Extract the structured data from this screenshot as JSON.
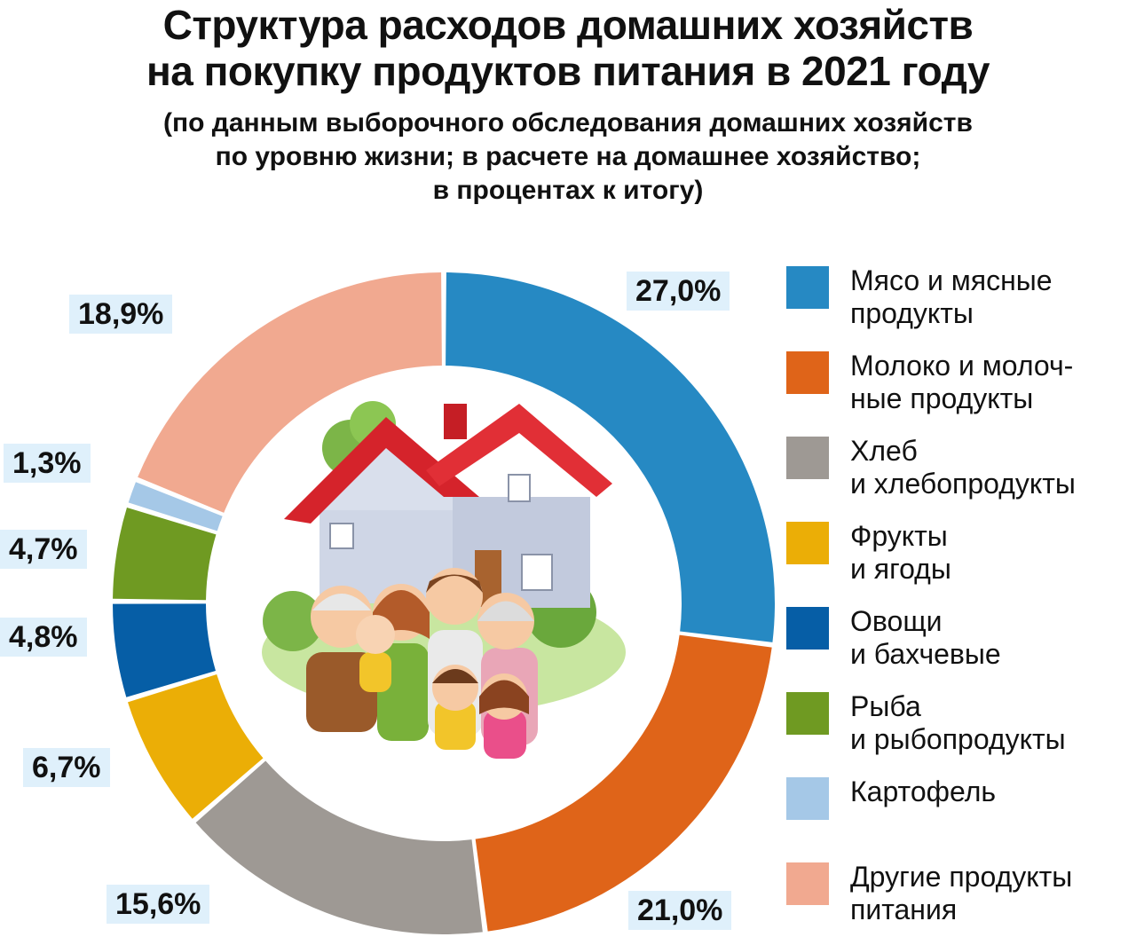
{
  "title": {
    "line1": "Структура расходов домашних хозяйств",
    "line2": "на покупку продуктов питания в 2021 году"
  },
  "subtitle": {
    "line1": "(по данным выборочного обследования домашних хозяйств",
    "line2": "по уровню жизни; в расчете на домашнее хозяйство;",
    "line3": "в процентах к итогу)"
  },
  "chart_data": {
    "type": "pie",
    "style": "donut",
    "unit": "%",
    "slices": [
      {
        "category": "Мясо и мясные продукты",
        "value": 27.0,
        "label": "27,0%",
        "color": "#2689c3"
      },
      {
        "category": "Молоко и молочные продукты",
        "value": 21.0,
        "label": "21,0%",
        "color": "#df6419"
      },
      {
        "category": "Хлеб и хлебопродукты",
        "value": 15.6,
        "label": "15,6%",
        "color": "#9e9994"
      },
      {
        "category": "Фрукты и ягоды",
        "value": 6.7,
        "label": "6,7%",
        "color": "#ebae06"
      },
      {
        "category": "Овощи и бахчевые",
        "value": 4.8,
        "label": "4,8%",
        "color": "#065ea6"
      },
      {
        "category": "Рыба и рыбопродукты",
        "value": 4.7,
        "label": "4,7%",
        "color": "#6f9a22"
      },
      {
        "category": "Картофель",
        "value": 1.3,
        "label": "1,3%",
        "color": "#a5c8e7"
      },
      {
        "category": "Другие продукты питания",
        "value": 18.9,
        "label": "18,9%",
        "color": "#f1a990"
      }
    ],
    "legend_position": "right"
  },
  "legend": [
    {
      "line1": "Мясо и мясные",
      "line2": "продукты"
    },
    {
      "line1": "Молоко и молоч-",
      "line2": "ные продукты"
    },
    {
      "line1": "Хлеб",
      "line2": "и хлебопродукты"
    },
    {
      "line1": "Фрукты",
      "line2": "и ягоды"
    },
    {
      "line1": "Овощи",
      "line2": "и бахчевые"
    },
    {
      "line1": "Рыба",
      "line2": "и рыбопродукты"
    },
    {
      "line1": "Картофель",
      "line2": ""
    },
    {
      "line1": "Другие продукты",
      "line2": "питания"
    }
  ],
  "illustration": {
    "name": "family-house-illustration"
  }
}
